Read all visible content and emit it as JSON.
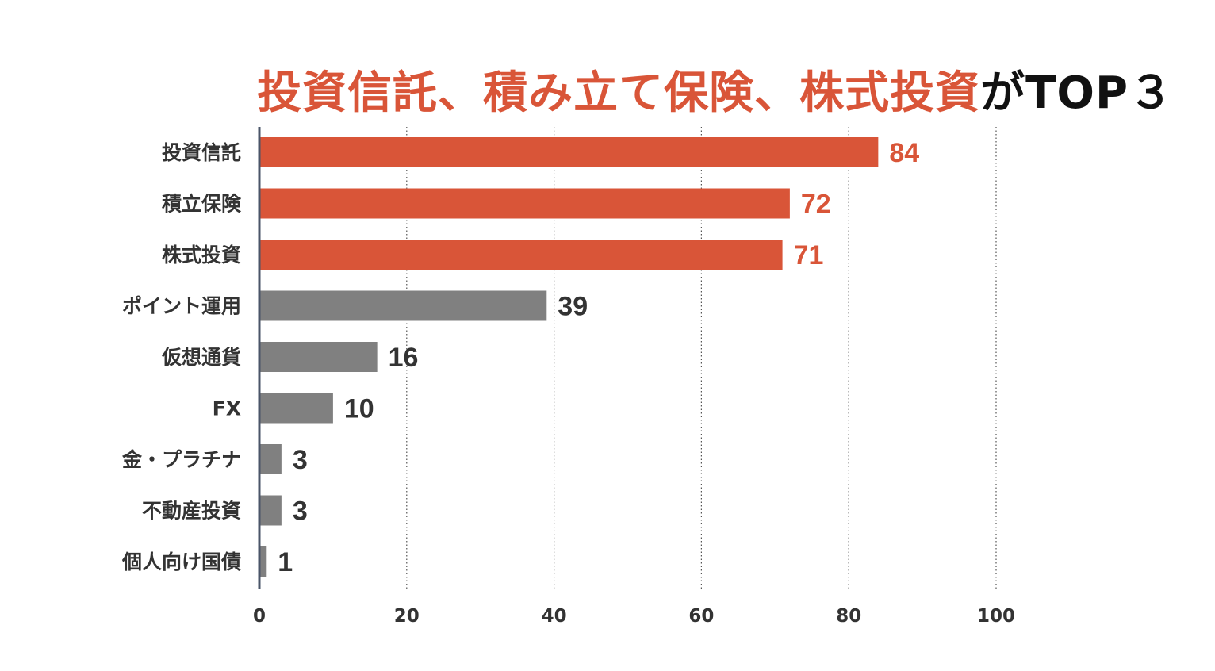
{
  "title": {
    "part1": "投資信託",
    "sep1": "、",
    "part2": "積み立て保険",
    "sep2": "、",
    "part3": "株式投資",
    "tail": "がTOP３"
  },
  "colors": {
    "highlight": "#d95538",
    "muted": "#808080",
    "axis": "#4a5568",
    "grid": "#555555",
    "muted_label": "#333333"
  },
  "chart_data": {
    "type": "bar",
    "orientation": "horizontal",
    "title": "投資信託、積み立て保険、株式投資がTOP３",
    "categories": [
      "投資信託",
      "積立保険",
      "株式投資",
      "ポイント運用",
      "仮想通貨",
      "FX",
      "金・プラチナ",
      "不動産投資",
      "個人向け国債"
    ],
    "values": [
      84,
      72,
      71,
      39,
      16,
      10,
      3,
      3,
      1
    ],
    "highlight": [
      true,
      true,
      true,
      false,
      false,
      false,
      false,
      false,
      false
    ],
    "xlim": [
      0,
      100
    ],
    "xticks": [
      0,
      20,
      40,
      60,
      80,
      100
    ],
    "xlabel": "",
    "ylabel": "",
    "grid": "vertical dotted"
  }
}
